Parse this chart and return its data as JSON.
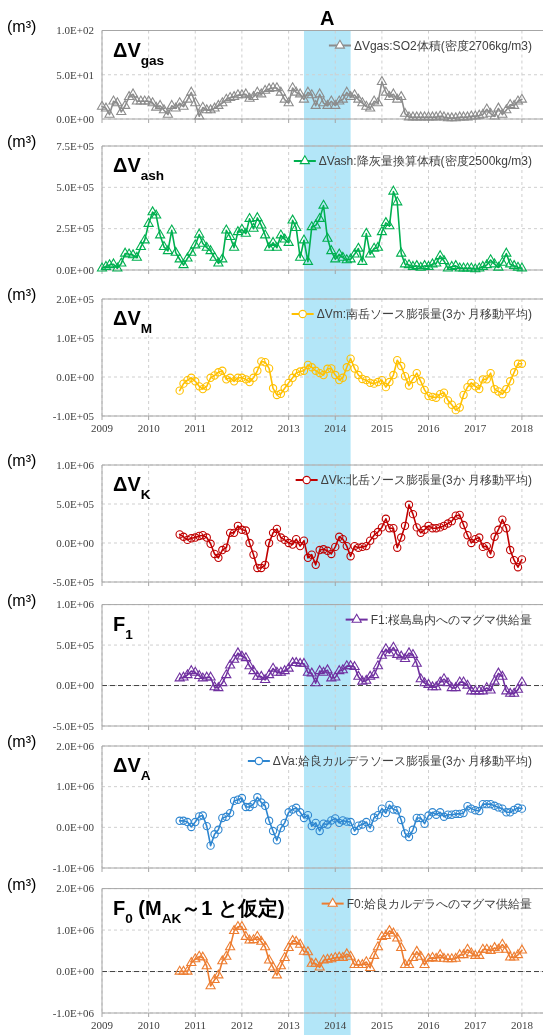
{
  "chart_data": [
    {
      "type": "line",
      "title": "ΔV$_{gas}$",
      "ylabel": "(m³)",
      "xlim": [
        "2009-01",
        "2018-06-15"
      ],
      "xticks": [
        "2009",
        "2010",
        "2011",
        "2012",
        "2013",
        "2014",
        "2015",
        "2016",
        "2017",
        "2018"
      ],
      "ylim": [
        0,
        100
      ],
      "yticks": [
        {
          "value": 0,
          "label": "0.0E+00"
        },
        {
          "value": 50,
          "label": "5.0E+01"
        },
        {
          "value": 100,
          "label": "1.0E+02"
        }
      ],
      "tick_labels": "y",
      "grid": true,
      "legend": "top right",
      "marker": "triangle",
      "bands": [
        {
          "axis": "x",
          "from": "2013-05",
          "to": "2014-05",
          "label": "A",
          "color": "#b3e6f8"
        }
      ],
      "x": [
        "2009-01",
        "2009-02",
        "2009-03",
        "2009-04",
        "2009-05",
        "2009-06",
        "2009-07",
        "2009-08",
        "2009-09",
        "2009-10",
        "2009-11",
        "2009-12",
        "2010-01",
        "2010-02",
        "2010-03",
        "2010-04",
        "2010-05",
        "2010-06",
        "2010-07",
        "2010-08",
        "2010-09",
        "2010-10",
        "2010-11",
        "2010-12",
        "2011-01",
        "2011-02",
        "2011-03",
        "2011-04",
        "2011-05",
        "2011-06",
        "2011-07",
        "2011-08",
        "2011-09",
        "2011-10",
        "2011-11",
        "2011-12",
        "2012-01",
        "2012-02",
        "2012-03",
        "2012-04",
        "2012-05",
        "2012-06",
        "2012-07",
        "2012-08",
        "2012-09",
        "2012-10",
        "2012-11",
        "2012-12",
        "2013-01",
        "2013-02",
        "2013-03",
        "2013-04",
        "2013-05",
        "2013-06",
        "2013-07",
        "2013-08",
        "2013-09",
        "2013-10",
        "2013-11",
        "2013-12",
        "2014-01",
        "2014-02",
        "2014-03",
        "2014-04",
        "2014-05",
        "2014-06",
        "2014-07",
        "2014-08",
        "2014-09",
        "2014-10",
        "2014-11",
        "2014-12",
        "2015-01",
        "2015-02",
        "2015-03",
        "2015-04",
        "2015-05",
        "2015-06",
        "2015-07",
        "2015-08",
        "2015-09",
        "2015-10",
        "2015-11",
        "2015-12",
        "2016-01",
        "2016-02",
        "2016-03",
        "2016-04",
        "2016-05",
        "2016-06",
        "2016-07",
        "2016-08",
        "2016-09",
        "2016-10",
        "2016-11",
        "2016-12",
        "2017-01",
        "2017-02",
        "2017-03",
        "2017-04",
        "2017-05",
        "2017-06",
        "2017-07",
        "2017-08",
        "2017-09",
        "2017-10",
        "2017-11",
        "2017-12",
        "2018-01"
      ],
      "series": [
        {
          "name": "ΔVgas:SO2体積(密度2706kg/m3)",
          "color": "#8c8c8c",
          "values": [
            14,
            12,
            5,
            20,
            18,
            8,
            15,
            25,
            28,
            20,
            20,
            20,
            20,
            18,
            13,
            15,
            10,
            5,
            15,
            12,
            18,
            14,
            22,
            30,
            18,
            3,
            13,
            10,
            10,
            12,
            15,
            18,
            22,
            24,
            25,
            27,
            27,
            28,
            23,
            25,
            30,
            28,
            32,
            34,
            35,
            35,
            30,
            22,
            18,
            35,
            30,
            28,
            22,
            30,
            27,
            15,
            28,
            18,
            15,
            20,
            15,
            20,
            22,
            30,
            25,
            27,
            22,
            18,
            14,
            12,
            20,
            18,
            42,
            30,
            25,
            28,
            22,
            25,
            6,
            2,
            2,
            2,
            2,
            2,
            2,
            2,
            2,
            3,
            2,
            1,
            1,
            1,
            2,
            2,
            2,
            3,
            3,
            4,
            5,
            11,
            6,
            3,
            12,
            5,
            10,
            16,
            15,
            20,
            22
          ]
        }
      ]
    },
    {
      "type": "line",
      "title": "ΔV$_{ash}$",
      "ylabel": "(m³)",
      "xlim": [
        "2009-01",
        "2018-06-15"
      ],
      "xticks": [
        "2009",
        "2010",
        "2011",
        "2012",
        "2013",
        "2014",
        "2015",
        "2016",
        "2017",
        "2018"
      ],
      "ylim": [
        0,
        750000
      ],
      "yticks": [
        {
          "value": 0,
          "label": "0.0E+00"
        },
        {
          "value": 250000,
          "label": "2.5E+05"
        },
        {
          "value": 500000,
          "label": "5.0E+05"
        },
        {
          "value": 750000,
          "label": "7.5E+05"
        }
      ],
      "tick_labels": "y",
      "grid": true,
      "legend": "top right",
      "marker": "triangle",
      "bands": [
        {
          "axis": "x",
          "from": "2013-05",
          "to": "2014-05",
          "color": "#b3e6f8"
        }
      ],
      "x": [
        "2009-01",
        "2009-02",
        "2009-03",
        "2009-04",
        "2009-05",
        "2009-06",
        "2009-07",
        "2009-08",
        "2009-09",
        "2009-10",
        "2009-11",
        "2009-12",
        "2010-01",
        "2010-02",
        "2010-03",
        "2010-04",
        "2010-05",
        "2010-06",
        "2010-07",
        "2010-08",
        "2010-09",
        "2010-10",
        "2010-11",
        "2010-12",
        "2011-01",
        "2011-02",
        "2011-03",
        "2011-04",
        "2011-05",
        "2011-06",
        "2011-07",
        "2011-08",
        "2011-09",
        "2011-10",
        "2011-11",
        "2011-12",
        "2012-01",
        "2012-02",
        "2012-03",
        "2012-04",
        "2012-05",
        "2012-06",
        "2012-07",
        "2012-08",
        "2012-09",
        "2012-10",
        "2012-11",
        "2012-12",
        "2013-01",
        "2013-02",
        "2013-03",
        "2013-04",
        "2013-05",
        "2013-06",
        "2013-07",
        "2013-08",
        "2013-09",
        "2013-10",
        "2013-11",
        "2013-12",
        "2014-01",
        "2014-02",
        "2014-03",
        "2014-04",
        "2014-05",
        "2014-06",
        "2014-07",
        "2014-08",
        "2014-09",
        "2014-10",
        "2014-11",
        "2014-12",
        "2015-01",
        "2015-02",
        "2015-03",
        "2015-04",
        "2015-05",
        "2015-06",
        "2015-07",
        "2015-08",
        "2015-09",
        "2015-10",
        "2015-11",
        "2015-12",
        "2016-01",
        "2016-02",
        "2016-03",
        "2016-04",
        "2016-05",
        "2016-06",
        "2016-07",
        "2016-08",
        "2016-09",
        "2016-10",
        "2016-11",
        "2016-12",
        "2017-01",
        "2017-02",
        "2017-03",
        "2017-04",
        "2017-05",
        "2017-06",
        "2017-07",
        "2017-08",
        "2017-09",
        "2017-10",
        "2017-11",
        "2017-12",
        "2018-01"
      ],
      "series": [
        {
          "name": "ΔVash:降灰量換算体積(密度2500kg/m3)",
          "color": "#00b050",
          "values": [
            10000,
            20000,
            30000,
            35000,
            10000,
            40000,
            100000,
            95000,
            90000,
            75000,
            140000,
            180000,
            280000,
            350000,
            330000,
            210000,
            140000,
            115000,
            240000,
            105000,
            65000,
            30000,
            70000,
            105000,
            150000,
            215000,
            160000,
            135000,
            115000,
            75000,
            40000,
            65000,
            240000,
            200000,
            135000,
            230000,
            245000,
            220000,
            310000,
            250000,
            315000,
            270000,
            210000,
            135000,
            165000,
            135000,
            210000,
            185000,
            165000,
            300000,
            255000,
            75000,
            180000,
            50000,
            260000,
            270000,
            310000,
            390000,
            190000,
            115000,
            65000,
            95000,
            75000,
            60000,
            65000,
            95000,
            130000,
            50000,
            220000,
            95000,
            130000,
            135000,
            230000,
            285000,
            265000,
            475000,
            410000,
            100000,
            35000,
            30000,
            20000,
            25000,
            15000,
            25000,
            20000,
            35000,
            40000,
            85000,
            55000,
            10000,
            20000,
            25000,
            10000,
            10000,
            10000,
            10000,
            5000,
            10000,
            20000,
            30000,
            60000,
            35000,
            15000,
            45000,
            100000,
            35000,
            25000,
            15000,
            10000
          ]
        }
      ]
    },
    {
      "type": "line",
      "title": "ΔV$_{M}$",
      "ylabel": "(m³)",
      "xlim": [
        "2009-01",
        "2018-06-15"
      ],
      "xticks": [
        "2009",
        "2010",
        "2011",
        "2012",
        "2013",
        "2014",
        "2015",
        "2016",
        "2017",
        "2018"
      ],
      "ylim": [
        -100000,
        200000
      ],
      "yticks": [
        {
          "value": -100000,
          "label": "-1.0E+05"
        },
        {
          "value": 0,
          "label": "0.0E+00"
        },
        {
          "value": 100000,
          "label": "1.0E+05"
        },
        {
          "value": 200000,
          "label": "2.0E+05"
        }
      ],
      "grid": true,
      "legend": "top right",
      "marker": "circle",
      "bands": [
        {
          "axis": "x",
          "from": "2013-05",
          "to": "2014-05",
          "color": "#b3e6f8"
        }
      ],
      "x": [
        "2010-09",
        "2010-10",
        "2010-11",
        "2010-12",
        "2011-01",
        "2011-02",
        "2011-03",
        "2011-04",
        "2011-05",
        "2011-06",
        "2011-07",
        "2011-08",
        "2011-09",
        "2011-10",
        "2011-11",
        "2011-12",
        "2012-01",
        "2012-02",
        "2012-03",
        "2012-04",
        "2012-05",
        "2012-06",
        "2012-07",
        "2012-08",
        "2012-09",
        "2012-10",
        "2012-11",
        "2012-12",
        "2013-01",
        "2013-02",
        "2013-03",
        "2013-04",
        "2013-05",
        "2013-06",
        "2013-07",
        "2013-08",
        "2013-09",
        "2013-10",
        "2013-11",
        "2013-12",
        "2014-01",
        "2014-02",
        "2014-03",
        "2014-04",
        "2014-05",
        "2014-06",
        "2014-07",
        "2014-08",
        "2014-09",
        "2014-10",
        "2014-11",
        "2014-12",
        "2015-01",
        "2015-02",
        "2015-03",
        "2015-04",
        "2015-05",
        "2015-06",
        "2015-07",
        "2015-08",
        "2015-09",
        "2015-10",
        "2015-11",
        "2015-12",
        "2016-01",
        "2016-02",
        "2016-03",
        "2016-04",
        "2016-05",
        "2016-06",
        "2016-07",
        "2016-08",
        "2016-09",
        "2016-10",
        "2016-11",
        "2016-12",
        "2017-01",
        "2017-02",
        "2017-03",
        "2017-04",
        "2017-05",
        "2017-06",
        "2017-07",
        "2017-08",
        "2017-09",
        "2017-10",
        "2017-11",
        "2017-12",
        "2018-01"
      ],
      "series": [
        {
          "name": "ΔVm:南岳ソース膨張量(3か 月移動平均)",
          "color": "#ffc000",
          "values": [
            -35000,
            -17000,
            -8000,
            -2000,
            -11000,
            -24000,
            -31000,
            -24000,
            -2000,
            4000,
            12000,
            16000,
            -6000,
            -2000,
            -11000,
            -2000,
            -2000,
            -6000,
            -13000,
            -2000,
            16000,
            40000,
            38000,
            22000,
            -29000,
            -46000,
            -43000,
            -29000,
            -15000,
            -2000,
            10000,
            14000,
            16000,
            31000,
            25000,
            16000,
            10000,
            5000,
            21000,
            22000,
            5000,
            -8000,
            -2000,
            25000,
            47000,
            22000,
            5000,
            -5000,
            -8000,
            -15000,
            -17000,
            -13000,
            -8000,
            -26000,
            -13000,
            5000,
            43000,
            28000,
            2000,
            -22000,
            -5000,
            10000,
            -11000,
            -33000,
            -49000,
            -51000,
            -53000,
            -44000,
            -40000,
            -60000,
            -71000,
            -85000,
            -78000,
            -46000,
            -26000,
            -15000,
            -24000,
            -31000,
            -6000,
            -6000,
            10000,
            -31000,
            -37000,
            -44000,
            -31000,
            -11000,
            12000,
            34000,
            34000
          ]
        }
      ]
    },
    {
      "type": "line",
      "title": "ΔV$_{K}$",
      "ylabel": "(m³)",
      "xlim": [
        "2009-01",
        "2018-06-15"
      ],
      "xticks": [
        "2009",
        "2010",
        "2011",
        "2012",
        "2013",
        "2014",
        "2015",
        "2016",
        "2017",
        "2018"
      ],
      "ylim": [
        -500000,
        1000000
      ],
      "yticks": [
        {
          "value": -500000,
          "label": "-5.0E+05"
        },
        {
          "value": 0,
          "label": "0.0E+00"
        },
        {
          "value": 500000,
          "label": "5.0E+05"
        },
        {
          "value": 1000000,
          "label": "1.0E+06"
        }
      ],
      "tick_labels": "y",
      "grid": true,
      "legend": "top right",
      "marker": "circle",
      "bands": [
        {
          "axis": "x",
          "from": "2013-05",
          "to": "2014-05",
          "color": "#b3e6f8"
        }
      ],
      "x": [
        "2010-09",
        "2010-10",
        "2010-11",
        "2010-12",
        "2011-01",
        "2011-02",
        "2011-03",
        "2011-04",
        "2011-05",
        "2011-06",
        "2011-07",
        "2011-08",
        "2011-09",
        "2011-10",
        "2011-11",
        "2011-12",
        "2012-01",
        "2012-02",
        "2012-03",
        "2012-04",
        "2012-05",
        "2012-06",
        "2012-07",
        "2012-08",
        "2012-09",
        "2012-10",
        "2012-11",
        "2012-12",
        "2013-01",
        "2013-02",
        "2013-03",
        "2013-04",
        "2013-05",
        "2013-06",
        "2013-07",
        "2013-08",
        "2013-09",
        "2013-10",
        "2013-11",
        "2013-12",
        "2014-01",
        "2014-02",
        "2014-03",
        "2014-04",
        "2014-05",
        "2014-06",
        "2014-07",
        "2014-08",
        "2014-09",
        "2014-10",
        "2014-11",
        "2014-12",
        "2015-01",
        "2015-02",
        "2015-03",
        "2015-04",
        "2015-05",
        "2015-06",
        "2015-07",
        "2015-08",
        "2015-09",
        "2015-10",
        "2015-11",
        "2015-12",
        "2016-01",
        "2016-02",
        "2016-03",
        "2016-04",
        "2016-05",
        "2016-06",
        "2016-07",
        "2016-08",
        "2016-09",
        "2016-10",
        "2016-11",
        "2016-12",
        "2017-01",
        "2017-02",
        "2017-03",
        "2017-04",
        "2017-05",
        "2017-06",
        "2017-07",
        "2017-08",
        "2017-09",
        "2017-10",
        "2017-11",
        "2017-12",
        "2018-01"
      ],
      "series": [
        {
          "name": "ΔVk:北岳ソース膨張量(3か 月移動平均)",
          "color": "#c00000",
          "values": [
            110000,
            80000,
            40000,
            60000,
            70000,
            90000,
            100000,
            70000,
            -10000,
            -140000,
            -190000,
            -90000,
            -60000,
            130000,
            130000,
            220000,
            170000,
            160000,
            0,
            -150000,
            -320000,
            -320000,
            -280000,
            0,
            130000,
            180000,
            70000,
            40000,
            0,
            -20000,
            50000,
            -40000,
            30000,
            -190000,
            -150000,
            -280000,
            -90000,
            -80000,
            -100000,
            -140000,
            -50000,
            80000,
            50000,
            -40000,
            -170000,
            -40000,
            -60000,
            -50000,
            -40000,
            30000,
            100000,
            140000,
            200000,
            310000,
            190000,
            190000,
            -60000,
            70000,
            220000,
            490000,
            370000,
            200000,
            130000,
            170000,
            220000,
            190000,
            190000,
            200000,
            220000,
            250000,
            280000,
            350000,
            360000,
            230000,
            100000,
            0,
            50000,
            70000,
            -50000,
            -40000,
            -140000,
            80000,
            170000,
            300000,
            190000,
            -90000,
            -220000,
            -310000,
            -210000
          ]
        }
      ]
    },
    {
      "type": "line",
      "title": "F$_{1}$",
      "ylabel": "(m³)",
      "xlim": [
        "2009-01",
        "2018-06-15"
      ],
      "xticks": [
        "2009",
        "2010",
        "2011",
        "2012",
        "2013",
        "2014",
        "2015",
        "2016",
        "2017",
        "2018"
      ],
      "ylim": [
        -500000,
        1000000
      ],
      "yticks": [
        {
          "value": -500000,
          "label": "-5.0E+05"
        },
        {
          "value": 0,
          "label": "0.0E+00"
        },
        {
          "value": 500000,
          "label": "5.0E+05"
        },
        {
          "value": 1000000,
          "label": "1.0E+06"
        }
      ],
      "tick_labels": "y",
      "grid": true,
      "legend": "top right",
      "marker": "triangle",
      "ref_lines": [
        {
          "axis": "y",
          "value": 0,
          "color": "#404040",
          "line_style": "dashed"
        }
      ],
      "bands": [
        {
          "axis": "x",
          "from": "2013-05",
          "to": "2014-05",
          "color": "#b3e6f8"
        }
      ],
      "x": [
        "2010-09",
        "2010-10",
        "2010-11",
        "2010-12",
        "2011-01",
        "2011-02",
        "2011-03",
        "2011-04",
        "2011-05",
        "2011-06",
        "2011-07",
        "2011-08",
        "2011-09",
        "2011-10",
        "2011-11",
        "2011-12",
        "2012-01",
        "2012-02",
        "2012-03",
        "2012-04",
        "2012-05",
        "2012-06",
        "2012-07",
        "2012-08",
        "2012-09",
        "2012-10",
        "2012-11",
        "2012-12",
        "2013-01",
        "2013-02",
        "2013-03",
        "2013-04",
        "2013-05",
        "2013-06",
        "2013-07",
        "2013-08",
        "2013-09",
        "2013-10",
        "2013-11",
        "2013-12",
        "2014-01",
        "2014-02",
        "2014-03",
        "2014-04",
        "2014-05",
        "2014-06",
        "2014-07",
        "2014-08",
        "2014-09",
        "2014-10",
        "2014-11",
        "2014-12",
        "2015-01",
        "2015-02",
        "2015-03",
        "2015-04",
        "2015-05",
        "2015-06",
        "2015-07",
        "2015-08",
        "2015-09",
        "2015-10",
        "2015-11",
        "2015-12",
        "2016-01",
        "2016-02",
        "2016-03",
        "2016-04",
        "2016-05",
        "2016-06",
        "2016-07",
        "2016-08",
        "2016-09",
        "2016-10",
        "2016-11",
        "2016-12",
        "2017-01",
        "2017-02",
        "2017-03",
        "2017-04",
        "2017-05",
        "2017-06",
        "2017-07",
        "2017-08",
        "2017-09",
        "2017-10",
        "2017-11",
        "2017-12",
        "2018-01"
      ],
      "series": [
        {
          "name": "F1:桜島島内へのマグマ供給量",
          "color": "#7030a0",
          "values": [
            90000,
            100000,
            130000,
            180000,
            160000,
            120000,
            90000,
            100000,
            100000,
            -20000,
            -30000,
            30000,
            130000,
            250000,
            320000,
            400000,
            360000,
            340000,
            240000,
            180000,
            110000,
            110000,
            70000,
            130000,
            210000,
            160000,
            160000,
            180000,
            210000,
            280000,
            280000,
            270000,
            270000,
            160000,
            150000,
            30000,
            180000,
            160000,
            190000,
            90000,
            100000,
            180000,
            190000,
            240000,
            240000,
            230000,
            110000,
            50000,
            60000,
            110000,
            130000,
            240000,
            370000,
            450000,
            400000,
            470000,
            380000,
            360000,
            330000,
            400000,
            380000,
            270000,
            80000,
            30000,
            10000,
            -20000,
            -20000,
            40000,
            80000,
            30000,
            -30000,
            -30000,
            40000,
            40000,
            0,
            -70000,
            -70000,
            -70000,
            -70000,
            -30000,
            -60000,
            50000,
            150000,
            110000,
            -70000,
            -100000,
            -100000,
            -50000,
            40000
          ]
        }
      ]
    },
    {
      "type": "line",
      "title": "ΔV$_{A}$",
      "ylabel": "(m³)",
      "xlim": [
        "2009-01",
        "2018-06-15"
      ],
      "xticks": [
        "2009",
        "2010",
        "2011",
        "2012",
        "2013",
        "2014",
        "2015",
        "2016",
        "2017",
        "2018"
      ],
      "ylim": [
        -1000000,
        2000000
      ],
      "yticks": [
        {
          "value": -1000000,
          "label": "-1.0E+06"
        },
        {
          "value": 0,
          "label": "0.0E+00"
        },
        {
          "value": 1000000,
          "label": "1.0E+06"
        },
        {
          "value": 2000000,
          "label": "2.0E+06"
        }
      ],
      "tick_labels": "y",
      "grid": true,
      "legend": "top right",
      "marker": "circle",
      "bands": [
        {
          "axis": "x",
          "from": "2013-05",
          "to": "2014-05",
          "color": "#b3e6f8"
        }
      ],
      "x": [
        "2010-09",
        "2010-10",
        "2010-11",
        "2010-12",
        "2011-01",
        "2011-02",
        "2011-03",
        "2011-04",
        "2011-05",
        "2011-06",
        "2011-07",
        "2011-08",
        "2011-09",
        "2011-10",
        "2011-11",
        "2011-12",
        "2012-01",
        "2012-02",
        "2012-03",
        "2012-04",
        "2012-05",
        "2012-06",
        "2012-07",
        "2012-08",
        "2012-09",
        "2012-10",
        "2012-11",
        "2012-12",
        "2013-01",
        "2013-02",
        "2013-03",
        "2013-04",
        "2013-05",
        "2013-06",
        "2013-07",
        "2013-08",
        "2013-09",
        "2013-10",
        "2013-11",
        "2013-12",
        "2014-01",
        "2014-02",
        "2014-03",
        "2014-04",
        "2014-05",
        "2014-06",
        "2014-07",
        "2014-08",
        "2014-09",
        "2014-10",
        "2014-11",
        "2014-12",
        "2015-01",
        "2015-02",
        "2015-03",
        "2015-04",
        "2015-05",
        "2015-06",
        "2015-07",
        "2015-08",
        "2015-09",
        "2015-10",
        "2015-11",
        "2015-12",
        "2016-01",
        "2016-02",
        "2016-03",
        "2016-04",
        "2016-05",
        "2016-06",
        "2016-07",
        "2016-08",
        "2016-09",
        "2016-10",
        "2016-11",
        "2016-12",
        "2017-01",
        "2017-02",
        "2017-03",
        "2017-04",
        "2017-05",
        "2017-06",
        "2017-07",
        "2017-08",
        "2017-09",
        "2017-10",
        "2017-11",
        "2017-12",
        "2018-01"
      ],
      "series": [
        {
          "name": "ΔVa:姶良カルデラソース膨張量(3か 月移動平均)",
          "color": "#2e86d0",
          "values": [
            160000,
            160000,
            130000,
            10000,
            130000,
            270000,
            290000,
            30000,
            -450000,
            -170000,
            -60000,
            230000,
            260000,
            350000,
            650000,
            680000,
            720000,
            500000,
            500000,
            570000,
            740000,
            610000,
            530000,
            160000,
            -90000,
            -320000,
            -20000,
            110000,
            370000,
            440000,
            480000,
            370000,
            230000,
            300000,
            30000,
            110000,
            -90000,
            90000,
            70000,
            170000,
            220000,
            110000,
            170000,
            140000,
            130000,
            -90000,
            40000,
            70000,
            130000,
            -20000,
            240000,
            300000,
            460000,
            350000,
            550000,
            440000,
            420000,
            180000,
            -150000,
            -240000,
            -60000,
            230000,
            230000,
            90000,
            290000,
            370000,
            310000,
            370000,
            260000,
            310000,
            310000,
            330000,
            330000,
            350000,
            520000,
            460000,
            420000,
            400000,
            570000,
            570000,
            570000,
            530000,
            490000,
            460000,
            370000,
            370000,
            430000,
            480000,
            460000
          ]
        }
      ]
    },
    {
      "type": "line",
      "title": "F$_{0}$ (M$_{AK}$～1 と仮定)",
      "ylabel": "(m³)",
      "xlim": [
        "2009-01",
        "2018-06-15"
      ],
      "xticks": [
        "2009",
        "2010",
        "2011",
        "2012",
        "2013",
        "2014",
        "2015",
        "2016",
        "2017",
        "2018"
      ],
      "ylim": [
        -1000000,
        2000000
      ],
      "yticks": [
        {
          "value": -1000000,
          "label": "-1.0E+06"
        },
        {
          "value": 0,
          "label": "0.0E+00"
        },
        {
          "value": 1000000,
          "label": "1.0E+06"
        },
        {
          "value": 2000000,
          "label": "2.0E+06"
        }
      ],
      "grid": true,
      "legend": "top right",
      "marker": "triangle",
      "ref_lines": [
        {
          "axis": "y",
          "value": 0,
          "color": "#404040",
          "line_style": "dashed"
        }
      ],
      "bands": [
        {
          "axis": "x",
          "from": "2013-05",
          "to": "2014-05",
          "color": "#b3e6f8"
        }
      ],
      "x": [
        "2010-09",
        "2010-10",
        "2010-11",
        "2010-12",
        "2011-01",
        "2011-02",
        "2011-03",
        "2011-04",
        "2011-05",
        "2011-06",
        "2011-07",
        "2011-08",
        "2011-09",
        "2011-10",
        "2011-11",
        "2011-12",
        "2012-01",
        "2012-02",
        "2012-03",
        "2012-04",
        "2012-05",
        "2012-06",
        "2012-07",
        "2012-08",
        "2012-09",
        "2012-10",
        "2012-11",
        "2012-12",
        "2013-01",
        "2013-02",
        "2013-03",
        "2013-04",
        "2013-05",
        "2013-06",
        "2013-07",
        "2013-08",
        "2013-09",
        "2013-10",
        "2013-11",
        "2013-12",
        "2014-01",
        "2014-02",
        "2014-03",
        "2014-04",
        "2014-05",
        "2014-06",
        "2014-07",
        "2014-08",
        "2014-09",
        "2014-10",
        "2014-11",
        "2014-12",
        "2015-01",
        "2015-02",
        "2015-03",
        "2015-04",
        "2015-05",
        "2015-06",
        "2015-07",
        "2015-08",
        "2015-09",
        "2015-10",
        "2015-11",
        "2015-12",
        "2016-01",
        "2016-02",
        "2016-03",
        "2016-04",
        "2016-05",
        "2016-06",
        "2016-07",
        "2016-08",
        "2016-09",
        "2016-10",
        "2016-11",
        "2016-12",
        "2017-01",
        "2017-02",
        "2017-03",
        "2017-04",
        "2017-05",
        "2017-06",
        "2017-07",
        "2017-08",
        "2017-09",
        "2017-10",
        "2017-11",
        "2017-12",
        "2018-01"
      ],
      "series": [
        {
          "name": "F0:姶良カルデラへのマグマ供給量",
          "color": "#ed7d31",
          "values": [
            0,
            0,
            0,
            210000,
            300000,
            360000,
            340000,
            130000,
            -350000,
            -200000,
            -90000,
            250000,
            360000,
            590000,
            980000,
            1080000,
            1080000,
            840000,
            750000,
            760000,
            840000,
            720000,
            590000,
            270000,
            100000,
            -90000,
            130000,
            330000,
            570000,
            740000,
            720000,
            650000,
            480000,
            470000,
            190000,
            190000,
            100000,
            270000,
            290000,
            300000,
            330000,
            340000,
            330000,
            420000,
            360000,
            160000,
            160000,
            160000,
            230000,
            90000,
            380000,
            590000,
            840000,
            860000,
            980000,
            920000,
            800000,
            570000,
            160000,
            160000,
            330000,
            480000,
            360000,
            160000,
            310000,
            330000,
            310000,
            400000,
            310000,
            300000,
            300000,
            310000,
            400000,
            400000,
            530000,
            440000,
            380000,
            380000,
            530000,
            530000,
            500000,
            570000,
            530000,
            650000,
            530000,
            340000,
            340000,
            400000,
            510000
          ]
        }
      ]
    }
  ]
}
